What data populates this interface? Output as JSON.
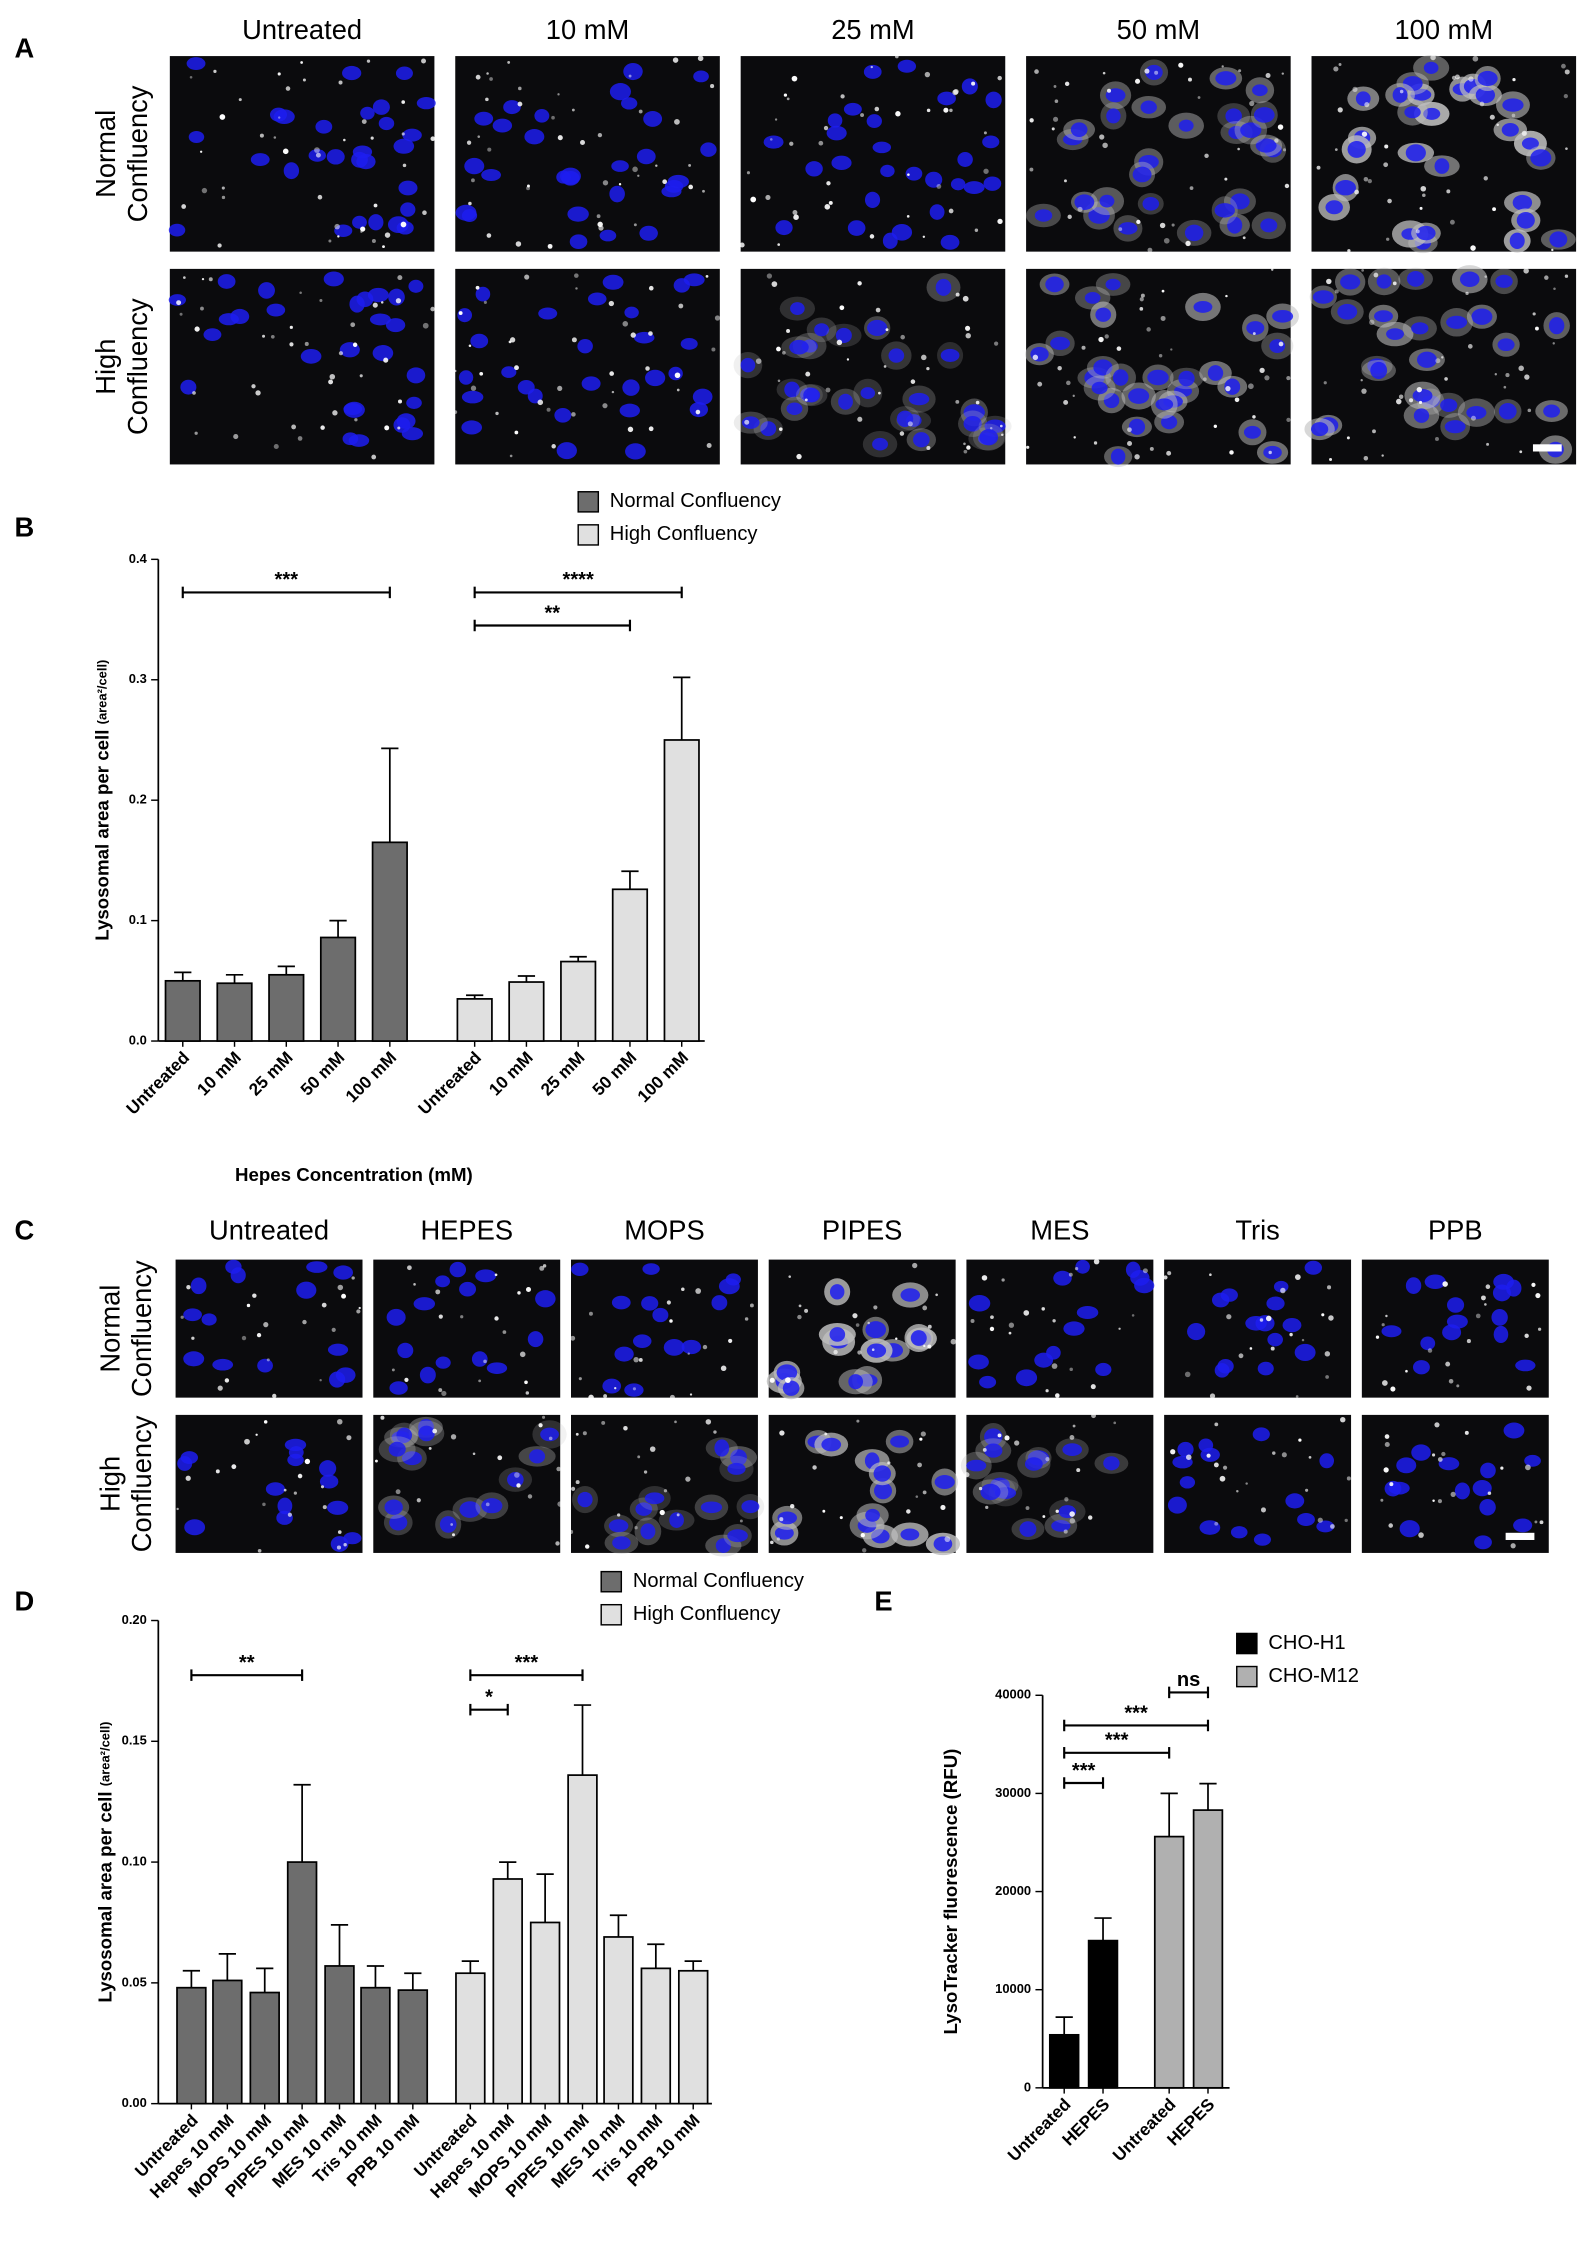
{
  "panel_a": {
    "panel_label": "A",
    "columns": [
      "Untreated",
      "10 mM",
      "25 mM",
      "50 mM",
      "100 mM"
    ],
    "rows": [
      [
        "Normal",
        "Confluency"
      ],
      [
        "High",
        "Confluency"
      ]
    ]
  },
  "panel_c": {
    "panel_label": "C",
    "columns": [
      "Untreated",
      "HEPES",
      "MOPS",
      "PIPES",
      "MES",
      "Tris",
      "PPB"
    ],
    "rows": [
      [
        "Normal",
        "Confluency"
      ],
      [
        "High",
        "Confluency"
      ]
    ]
  },
  "chart_data": [
    {
      "panel_label": "B",
      "type": "bar",
      "y_label": "Lysosomal area per cell",
      "y_label_unit": "(area²/cell)",
      "x_label": "Hepes Concentration (mM)",
      "categories": [
        "Untreated",
        "10 mM",
        "25 mM",
        "50 mM",
        "100 mM"
      ],
      "series": [
        {
          "name": "Normal Confluency",
          "color": "#6d6d6d",
          "values": [
            0.05,
            0.048,
            0.055,
            0.086,
            0.165
          ],
          "errors": [
            0.007,
            0.007,
            0.007,
            0.014,
            0.078
          ]
        },
        {
          "name": "High Confluency",
          "color": "#e0e0e0",
          "values": [
            0.035,
            0.049,
            0.066,
            0.126,
            0.25
          ],
          "errors": [
            0.003,
            0.005,
            0.004,
            0.015,
            0.052
          ]
        }
      ],
      "ylim": [
        0,
        0.4
      ],
      "yticks": [
        {
          "value": 0,
          "label": "0.0"
        },
        0.1,
        0.2,
        0.3,
        0.4
      ],
      "significance": [
        {
          "label": "***",
          "from": [
            0,
            0
          ],
          "to": [
            0,
            4
          ]
        },
        {
          "label": "****",
          "from": [
            1,
            0
          ],
          "to": [
            1,
            4
          ]
        },
        {
          "label": "**",
          "from": [
            1,
            0
          ],
          "to": [
            1,
            3
          ]
        }
      ]
    },
    {
      "panel_label": "D",
      "type": "bar",
      "y_label": "Lysosomal area per cell",
      "y_label_unit": "(area²/cell)",
      "categories": [
        "Untreated",
        "Hepes 10 mM",
        "MOPS 10 mM",
        "PIPES 10 mM",
        "MES 10 mM",
        "Tris 10 mM",
        "PPB 10 mM"
      ],
      "series": [
        {
          "name": "Normal Confluency",
          "color": "#6d6d6d",
          "values": [
            0.048,
            0.051,
            0.046,
            0.1,
            0.057,
            0.048,
            0.047
          ],
          "errors": [
            0.007,
            0.011,
            0.01,
            0.032,
            0.017,
            0.009,
            0.007
          ]
        },
        {
          "name": "High Confluency",
          "color": "#e0e0e0",
          "values": [
            0.054,
            0.093,
            0.075,
            0.136,
            0.069,
            0.056,
            0.055
          ],
          "errors": [
            0.005,
            0.007,
            0.02,
            0.029,
            0.009,
            0.01,
            0.004
          ]
        }
      ],
      "ylim": [
        0,
        0.2
      ],
      "yticks": [
        {
          "value": 0,
          "label": "0.00"
        },
        0.05,
        {
          "value": 0.1,
          "label": "0.10"
        },
        0.15,
        {
          "value": 0.2,
          "label": "0.20"
        }
      ],
      "significance": [
        {
          "label": "**",
          "from": [
            0,
            0
          ],
          "to": [
            0,
            3
          ]
        },
        {
          "label": "***",
          "from": [
            1,
            0
          ],
          "to": [
            1,
            3
          ]
        },
        {
          "label": "*",
          "from": [
            1,
            0
          ],
          "to": [
            1,
            1
          ]
        }
      ]
    },
    {
      "panel_label": "E",
      "type": "bar",
      "y_label": "LysoTracker fluorescence (RFU)",
      "categories": [
        "Untreated",
        "HEPES"
      ],
      "series": [
        {
          "name": "CHO-H1",
          "color": "#000000",
          "values": [
            5400,
            15000
          ],
          "errors": [
            1800,
            2300
          ]
        },
        {
          "name": "CHO-M12",
          "color": "#b0b0b0",
          "values": [
            25600,
            28300
          ],
          "errors": [
            4400,
            2700
          ]
        }
      ],
      "ylim": [
        0,
        40000
      ],
      "yticks": [
        0,
        10000,
        20000,
        30000,
        40000
      ],
      "significance": [
        {
          "label": "***",
          "from": [
            0,
            0
          ],
          "to": [
            0,
            1
          ]
        },
        {
          "label": "***",
          "from": [
            0,
            0
          ],
          "to": [
            1,
            0
          ]
        },
        {
          "label": "***",
          "from": [
            0,
            0
          ],
          "to": [
            1,
            1
          ]
        },
        {
          "label": "ns",
          "from": [
            1,
            0
          ],
          "to": [
            1,
            1
          ]
        }
      ]
    }
  ]
}
